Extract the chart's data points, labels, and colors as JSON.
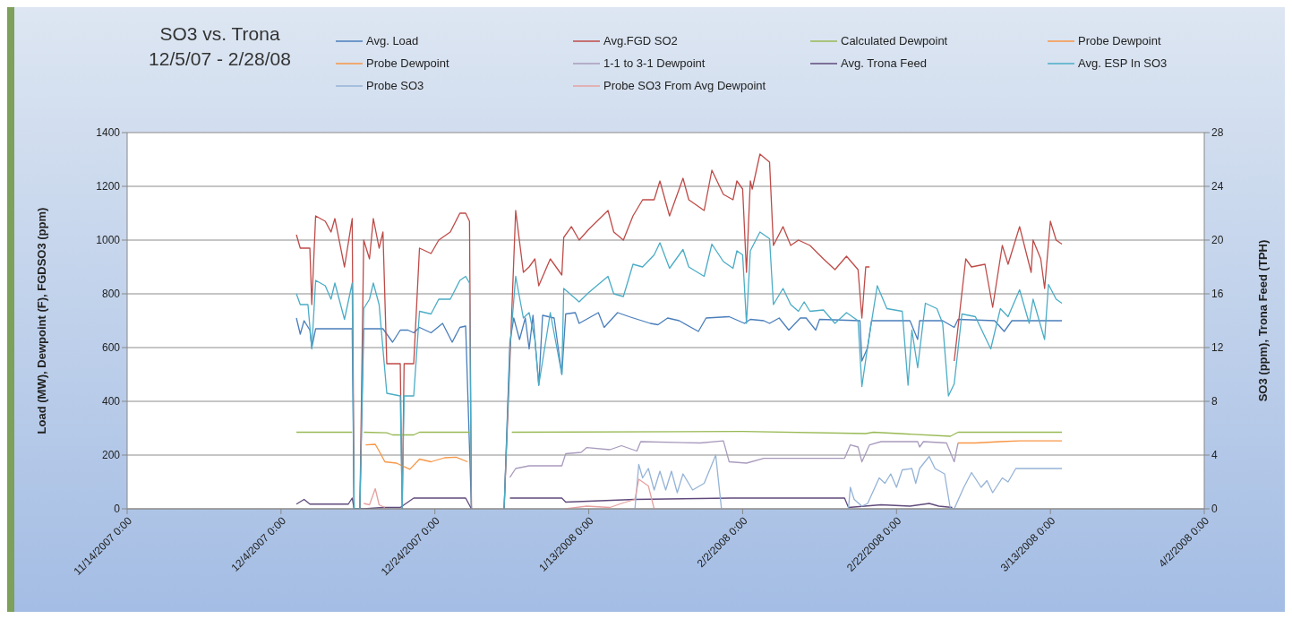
{
  "chart_data": {
    "type": "line",
    "title": "SO3 vs. Trona",
    "subtitle": "12/5/07 - 2/28/08",
    "ylabel": "Load (MW), Dewpoint (F), FGDSO3 (ppm)",
    "y2label": "SO3 (ppm), Trona Feed (TPH)",
    "xlim": [
      "2007-11-14",
      "2008-04-02"
    ],
    "xticks": [
      {
        "value": "2007-11-14",
        "label": "11/14/2007 0:00"
      },
      {
        "value": "2007-12-04",
        "label": "12/4/2007 0:00"
      },
      {
        "value": "2007-12-24",
        "label": "12/24/2007 0:00"
      },
      {
        "value": "2008-01-13",
        "label": "1/13/2008 0:00"
      },
      {
        "value": "2008-02-02",
        "label": "2/2/2008 0:00"
      },
      {
        "value": "2008-02-22",
        "label": "2/22/2008 0:00"
      },
      {
        "value": "2008-03-13",
        "label": "3/13/2008 0:00"
      },
      {
        "value": "2008-04-02",
        "label": "4/2/2008 0:00"
      }
    ],
    "ylim": [
      0,
      1400
    ],
    "yticks": [
      0,
      200,
      400,
      600,
      800,
      1000,
      1200,
      1400
    ],
    "y2lim": [
      0,
      28
    ],
    "y2ticks": [
      0,
      4,
      8,
      12,
      16,
      20,
      24,
      28
    ],
    "grid": "y",
    "legend": "top",
    "marker": "none",
    "line_style": "solid",
    "series": [
      {
        "name": "Avg. Load",
        "color": "#4a7ebb",
        "x": [
          "2007-12-06",
          "2007-12-06T12:00",
          "2007-12-07",
          "2007-12-07T18:00",
          "2007-12-08",
          "2007-12-08T12:00",
          "2007-12-13T06:00",
          "2007-12-13T12:00",
          "2007-12-14T06:00",
          "2007-12-14T18:00",
          "2007-12-17T06:00",
          "2007-12-18T12:00",
          "2007-12-19T12:00",
          "2007-12-20T12:00",
          "2007-12-21T06:00",
          "2007-12-22",
          "2007-12-23T12:00",
          "2007-12-25",
          "2007-12-26T06:00",
          "2007-12-27T06:00",
          "2007-12-28",
          "2007-12-28T18:00",
          "2007-12-30",
          "2008-01-02",
          "2008-01-02T18:00",
          "2008-01-03T06:00",
          "2008-01-04",
          "2008-01-04T18:00",
          "2008-01-05T06:00",
          "2008-01-05T18:00",
          "2008-01-06T12:00",
          "2008-01-07",
          "2008-01-08T12:00",
          "2008-01-09T12:00",
          "2008-01-10",
          "2008-01-11T06:00",
          "2008-01-11T18:00",
          "2008-01-14T06:00",
          "2008-01-15",
          "2008-01-16T18:00",
          "2008-01-18T06:00",
          "2008-01-21",
          "2008-01-22",
          "2008-01-23T06:00",
          "2008-01-24T18:00",
          "2008-01-27T06:00",
          "2008-01-28T06:00",
          "2008-01-31T06:00",
          "2008-02-02T06:00",
          "2008-02-03",
          "2008-02-04T18:00",
          "2008-02-05T12:00",
          "2008-02-06T18:00",
          "2008-02-08",
          "2008-02-09T12:00",
          "2008-02-10T06:00",
          "2008-02-11T12:00",
          "2008-02-12",
          "2008-02-17T06:00",
          "2008-02-17T12:00",
          "2008-02-18T06:00",
          "2008-02-18T18:00",
          "2008-02-23T18:00",
          "2008-02-24T06:00",
          "2008-02-24T18:00",
          "2008-02-25",
          "2008-02-28",
          "2008-02-29T12:00",
          "2008-03-01",
          "2008-03-05T18:00",
          "2008-03-07",
          "2008-03-08",
          "2008-03-14T12:00"
        ],
        "values": [
          710,
          650,
          700,
          665,
          600,
          670,
          670,
          0,
          0,
          670,
          670,
          620,
          665,
          665,
          655,
          675,
          655,
          690,
          620,
          675,
          680,
          0,
          null,
          0,
          620,
          710,
          630,
          710,
          595,
          720,
          460,
          720,
          710,
          500,
          725,
          730,
          690,
          730,
          675,
          730,
          715,
          690,
          685,
          710,
          700,
          660,
          710,
          715,
          690,
          705,
          700,
          690,
          710,
          665,
          710,
          710,
          665,
          705,
          700,
          550,
          600,
          700,
          700,
          665,
          630,
          700,
          700,
          675,
          705,
          700,
          660,
          700,
          700
        ]
      },
      {
        "name": "Avg.FGD SO2",
        "color": "#be4b48",
        "x": [
          "2007-12-06",
          "2007-12-06T12:00",
          "2007-12-07T18:00",
          "2007-12-08",
          "2007-12-08T12:00",
          "2007-12-09T18:00",
          "2007-12-10T12:00",
          "2007-12-11",
          "2007-12-12T06:00",
          "2007-12-13T06:00",
          "2007-12-13T12:00",
          "2007-12-14T06:00",
          "2007-12-14T18:00",
          "2007-12-15T12:00",
          "2007-12-16",
          "2007-12-16T18:00",
          "2007-12-17T06:00",
          "2007-12-17T18:00",
          "2007-12-19T12:00",
          "2007-12-19T18:00",
          "2007-12-20",
          "2007-12-21T06:00",
          "2007-12-22",
          "2007-12-23T12:00",
          "2007-12-24T12:00",
          "2007-12-26",
          "2007-12-27T06:00",
          "2007-12-28",
          "2007-12-28T12:00",
          "2007-12-28T18:00",
          "2007-12-30",
          "2008-01-02",
          "2008-01-02T18:00",
          "2008-01-03T12:00",
          "2008-01-04T12:00",
          "2008-01-05T06:00",
          "2008-01-06",
          "2008-01-06T12:00",
          "2008-01-08",
          "2008-01-09T12:00",
          "2008-01-09T18:00",
          "2008-01-10T18:00",
          "2008-01-11T18:00",
          "2008-01-13",
          "2008-01-15T12:00",
          "2008-01-16T06:00",
          "2008-01-17T12:00",
          "2008-01-18T18:00",
          "2008-01-20",
          "2008-01-21T12:00",
          "2008-01-22T06:00",
          "2008-01-23T12:00",
          "2008-01-25T06:00",
          "2008-01-26",
          "2008-01-28",
          "2008-01-29",
          "2008-01-30T12:00",
          "2008-01-31T18:00",
          "2008-02-01T06:00",
          "2008-02-02",
          "2008-02-02T12:00",
          "2008-02-03",
          "2008-02-03T06:00",
          "2008-02-04T06:00",
          "2008-02-05T12:00",
          "2008-02-06",
          "2008-02-07T06:00",
          "2008-02-08T06:00",
          "2008-02-09T06:00",
          "2008-02-10T18:00",
          "2008-02-12T12:00",
          "2008-02-14",
          "2008-02-15T12:00",
          "2008-02-17",
          "2008-02-17T12:00",
          "2008-02-18",
          "2008-02-18T12:00",
          "2008-02-20",
          "2008-02-29T12:00",
          "2008-03-02",
          "2008-03-02T18:00",
          "2008-03-04T12:00",
          "2008-03-05T12:00",
          "2008-03-06T18:00",
          "2008-03-07T12:00",
          "2008-03-09",
          "2008-03-10T12:00",
          "2008-03-10T18:00",
          "2008-03-11T18:00",
          "2008-03-12T06:00",
          "2008-03-13",
          "2008-03-13T18:00",
          "2008-03-14T12:00"
        ],
        "values": [
          1020,
          970,
          970,
          760,
          1090,
          1070,
          1030,
          1080,
          900,
          1080,
          0,
          0,
          1000,
          930,
          1080,
          970,
          1030,
          540,
          540,
          0,
          540,
          540,
          970,
          950,
          1000,
          1030,
          1100,
          1100,
          1070,
          0,
          null,
          0,
          550,
          1110,
          880,
          900,
          930,
          830,
          930,
          870,
          1010,
          1050,
          1000,
          1040,
          1110,
          1030,
          1000,
          1090,
          1150,
          1150,
          1220,
          1090,
          1230,
          1150,
          1110,
          1260,
          1170,
          1150,
          1220,
          1190,
          880,
          1220,
          1190,
          1320,
          1290,
          980,
          1050,
          980,
          1000,
          980,
          930,
          890,
          940,
          890,
          710,
          900,
          900,
          null,
          550,
          930,
          900,
          910,
          750,
          980,
          910,
          1050,
          880,
          1000,
          930,
          820,
          1070,
          1000,
          985
        ]
      },
      {
        "name": "Calculated Dewpoint",
        "color": "#98b954",
        "x": [
          "2007-12-06",
          "2007-12-13T06:00",
          "2007-12-14",
          "2007-12-14T18:00",
          "2007-12-17T18:00",
          "2007-12-18T12:00",
          "2007-12-21T06:00",
          "2007-12-22",
          "2007-12-28T12:00",
          "2007-12-30",
          "2008-01-03",
          "2008-02-02",
          "2008-02-18",
          "2008-02-19",
          "2008-02-29",
          "2008-03-01",
          "2008-03-14T12:00"
        ],
        "values": [
          285,
          285,
          null,
          285,
          283,
          275,
          275,
          285,
          285,
          null,
          285,
          288,
          280,
          285,
          270,
          285,
          285
        ]
      },
      {
        "name": "Probe Dewpoint",
        "color": "#f79646",
        "x": [
          "2007-12-15",
          "2007-12-16T06:00",
          "2007-12-16T18:00",
          "2007-12-17T12:00",
          "2007-12-19",
          "2007-12-20T18:00",
          "2007-12-22",
          "2007-12-23T12:00",
          "2007-12-25T06:00",
          "2007-12-26T18:00",
          "2007-12-28T06:00"
        ],
        "values": [
          238,
          240,
          215,
          175,
          170,
          147,
          185,
          175,
          190,
          192,
          175
        ]
      },
      {
        "name": "Probe Dewpoint",
        "color": "#f79646",
        "x": [
          "2008-03-01",
          "2008-03-03T06:00",
          "2008-03-06T12:00",
          "2008-03-09",
          "2008-03-14T12:00"
        ],
        "values": [
          245,
          245,
          250,
          253,
          253
        ]
      },
      {
        "name": "1-1 to 3-1 Dewpoint",
        "color": "#a99bbd",
        "x": [
          "2008-01-02T18:00",
          "2008-01-03T12:00",
          "2008-01-05T06:00",
          "2008-01-09T12:00",
          "2008-01-10",
          "2008-01-12",
          "2008-01-12T18:00",
          "2008-01-15T18:00",
          "2008-01-17T06:00",
          "2008-01-19T06:00",
          "2008-01-19T18:00",
          "2008-01-27T12:00",
          "2008-01-30T12:00",
          "2008-01-31T06:00",
          "2008-02-02T12:00",
          "2008-02-04T18:00",
          "2008-02-10T06:00",
          "2008-02-15T06:00",
          "2008-02-16",
          "2008-02-17",
          "2008-02-17T12:00",
          "2008-02-18T12:00",
          "2008-02-20",
          "2008-02-24T18:00",
          "2008-02-25",
          "2008-02-25T12:00",
          "2008-02-28T12:00",
          "2008-02-29T12:00",
          "2008-03-01"
        ],
        "values": [
          117,
          150,
          160,
          160,
          205,
          210,
          228,
          220,
          235,
          215,
          250,
          245,
          253,
          175,
          170,
          188,
          188,
          188,
          238,
          230,
          175,
          238,
          250,
          250,
          230,
          250,
          245,
          175,
          245
        ]
      },
      {
        "name": "Avg. Trona Feed",
        "color": "#604a7b",
        "axis": "y2",
        "x": [
          "2007-12-06",
          "2007-12-07",
          "2007-12-07T18:00",
          "2007-12-12T18:00",
          "2007-12-13T06:00",
          "2007-12-13T12:00",
          "2007-12-14T18:00",
          "2007-12-17T06:00",
          "2007-12-19T12:00",
          "2007-12-21T06:00",
          "2007-12-28",
          "2007-12-28T18:00",
          "2007-12-30",
          "2008-01-02T18:00",
          "2008-01-09T12:00",
          "2008-01-10",
          "2008-01-19",
          "2008-01-31T12:00",
          "2008-02-15T06:00",
          "2008-02-15T18:00",
          "2008-02-20",
          "2008-02-23T18:00",
          "2008-02-26T06:00",
          "2008-02-27T12:00",
          "2008-02-29T06:00"
        ],
        "values": [
          0.35,
          0.7,
          0.35,
          0.35,
          0.8,
          0,
          0,
          0.1,
          0.1,
          0.8,
          0.8,
          0,
          null,
          0.8,
          0.8,
          0.5,
          0.7,
          0.8,
          0.8,
          0.1,
          0.3,
          0.2,
          0.4,
          0.2,
          0.1
        ]
      },
      {
        "name": "Avg. ESP In SO3",
        "color": "#4bacc6",
        "axis": "y2",
        "x": [
          "2007-12-06",
          "2007-12-06T12:00",
          "2007-12-07T12:00",
          "2007-12-08",
          "2007-12-08T12:00",
          "2007-12-09T18:00",
          "2007-12-10T12:00",
          "2007-12-11",
          "2007-12-12T06:00",
          "2007-12-13T06:00",
          "2007-12-13T12:00",
          "2007-12-14T06:00",
          "2007-12-14T18:00",
          "2007-12-15T12:00",
          "2007-12-16",
          "2007-12-16T18:00",
          "2007-12-17T18:00",
          "2007-12-19T12:00",
          "2007-12-19T18:00",
          "2007-12-20",
          "2007-12-21T06:00",
          "2007-12-22",
          "2007-12-23T12:00",
          "2007-12-24T12:00",
          "2007-12-26",
          "2007-12-27T06:00",
          "2007-12-28",
          "2007-12-28T12:00",
          "2007-12-28T18:00",
          "2007-12-30",
          "2008-01-02",
          "2008-01-02T18:00",
          "2008-01-03T12:00",
          "2008-01-04T12:00",
          "2008-01-05T06:00",
          "2008-01-06",
          "2008-01-06T12:00",
          "2008-01-08",
          "2008-01-09T12:00",
          "2008-01-09T18:00",
          "2008-01-11T18:00",
          "2008-01-13",
          "2008-01-15T12:00",
          "2008-01-16T06:00",
          "2008-01-17T12:00",
          "2008-01-18T18:00",
          "2008-01-20",
          "2008-01-21T12:00",
          "2008-01-22T06:00",
          "2008-01-23T12:00",
          "2008-01-25T06:00",
          "2008-01-26",
          "2008-01-28",
          "2008-01-29",
          "2008-01-30T12:00",
          "2008-01-31T18:00",
          "2008-02-01T06:00",
          "2008-02-02",
          "2008-02-02T12:00",
          "2008-02-03",
          "2008-02-04T06:00",
          "2008-02-05T12:00",
          "2008-02-06",
          "2008-02-07T06:00",
          "2008-02-08T06:00",
          "2008-02-09T06:00",
          "2008-02-10",
          "2008-02-10T18:00",
          "2008-02-12T12:00",
          "2008-02-14",
          "2008-02-15T12:00",
          "2008-02-17",
          "2008-02-17T12:00",
          "2008-02-18T06:00",
          "2008-02-19T12:00",
          "2008-02-20T18:00",
          "2008-02-22T18:00",
          "2008-02-23T12:00",
          "2008-02-24",
          "2008-02-24T18:00",
          "2008-02-25T18:00",
          "2008-02-27T06:00",
          "2008-02-28",
          "2008-02-28T18:00",
          "2008-02-29T12:00",
          "2008-03-01T12:00",
          "2008-03-03T06:00",
          "2008-03-05T06:00",
          "2008-03-06T12:00",
          "2008-03-07T12:00",
          "2008-03-09",
          "2008-03-10T06:00",
          "2008-03-10T18:00",
          "2008-03-12T06:00",
          "2008-03-12T18:00",
          "2008-03-13T18:00",
          "2008-03-14T12:00"
        ],
        "values": [
          16.0,
          15.2,
          15.2,
          11.9,
          17.0,
          16.6,
          15.6,
          16.8,
          14.1,
          16.8,
          0,
          0,
          14.9,
          15.6,
          16.8,
          15.2,
          8.6,
          8.4,
          0,
          8.4,
          8.4,
          14.7,
          14.5,
          15.6,
          15.6,
          17.0,
          17.3,
          16.8,
          0,
          null,
          0,
          11.9,
          17.3,
          14.2,
          14.6,
          12.6,
          9.2,
          14.6,
          10.0,
          16.4,
          15.4,
          16.1,
          17.3,
          16.0,
          15.8,
          18.2,
          18.0,
          18.9,
          19.8,
          17.9,
          19.3,
          18.0,
          17.3,
          19.7,
          18.4,
          17.9,
          19.2,
          18.9,
          13.8,
          19.2,
          20.6,
          20.1,
          15.2,
          16.4,
          15.2,
          14.7,
          15.4,
          14.7,
          14.8,
          13.8,
          14.6,
          14.0,
          9.1,
          12.1,
          16.6,
          14.9,
          14.7,
          9.2,
          13.3,
          10.5,
          15.3,
          14.9,
          13.8,
          8.4,
          9.3,
          14.5,
          14.3,
          11.9,
          14.9,
          14.3,
          16.3,
          13.8,
          15.6,
          12.6,
          16.7,
          15.6,
          15.3
        ]
      },
      {
        "name": "Probe SO3",
        "color": "#95b3d7",
        "axis": "y2",
        "x": [
          "2008-01-19",
          "2008-01-19T12:00",
          "2008-01-20",
          "2008-01-20T18:00",
          "2008-01-21T12:00",
          "2008-01-22T06:00",
          "2008-01-23",
          "2008-01-23T18:00",
          "2008-01-24T12:00",
          "2008-01-25T06:00",
          "2008-01-26T12:00",
          "2008-01-28",
          "2008-01-29T12:00",
          "2008-01-30T06:00",
          "2008-01-31",
          "2008-02-15T18:00",
          "2008-02-16",
          "2008-02-16T12:00",
          "2008-02-17T12:00",
          "2008-02-18T06:00",
          "2008-02-19T18:00",
          "2008-02-20T12:00",
          "2008-02-21T06:00",
          "2008-02-22",
          "2008-02-22T18:00",
          "2008-02-24",
          "2008-02-24T12:00",
          "2008-02-25",
          "2008-02-26T06:00",
          "2008-02-27",
          "2008-02-28T06:00",
          "2008-02-29",
          "2008-02-29T12:00",
          "2008-03-01T18:00",
          "2008-03-02T18:00",
          "2008-03-04",
          "2008-03-04T18:00",
          "2008-03-05T12:00",
          "2008-03-06T18:00",
          "2008-03-07T12:00",
          "2008-03-08T12:00",
          "2008-03-14T12:00"
        ],
        "values": [
          0,
          3.3,
          2.3,
          3.0,
          1.4,
          2.8,
          1.4,
          2.8,
          1.2,
          2.6,
          1.4,
          1.9,
          4.0,
          0,
          null,
          0,
          1.6,
          0.7,
          0.2,
          0.4,
          2.3,
          1.9,
          2.6,
          1.6,
          2.9,
          3.0,
          1.9,
          3.0,
          3.9,
          3.0,
          2.6,
          0,
          0,
          1.6,
          2.7,
          1.6,
          2.1,
          1.2,
          2.3,
          2.0,
          3.0,
          3.0
        ]
      },
      {
        "name": "Probe SO3 From Avg Dewpoint",
        "color": "#e6a0a0",
        "axis": "y2",
        "x": [
          "2007-12-14T18:00",
          "2007-12-15T12:00",
          "2007-12-16T06:00",
          "2007-12-16T18:00",
          "2007-12-17T12:00",
          "2007-12-19",
          "2008-01-10",
          "2008-01-12T18:00",
          "2008-01-15T18:00",
          "2008-01-17T06:00",
          "2008-01-19",
          "2008-01-19T12:00",
          "2008-01-20T18:00",
          "2008-01-21T12:00"
        ],
        "values": [
          0.4,
          0.3,
          1.5,
          0.3,
          0.1,
          null,
          0,
          0.2,
          0.1,
          0.4,
          0.7,
          2.2,
          1.7,
          0
        ]
      }
    ]
  }
}
